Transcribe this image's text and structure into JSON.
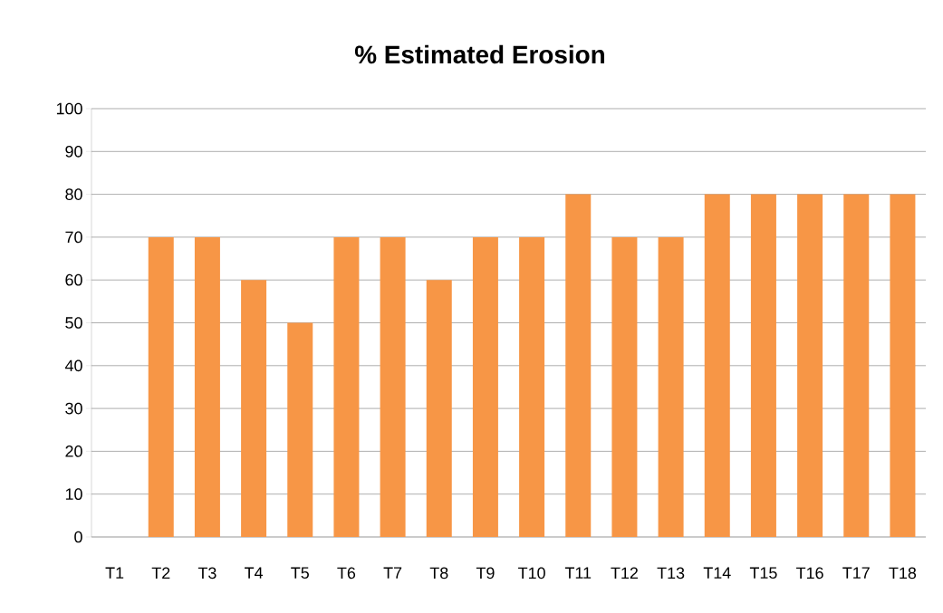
{
  "chart_data": {
    "type": "bar",
    "title": "% Estimated Erosion",
    "categories": [
      "T1",
      "T2",
      "T3",
      "T4",
      "T5",
      "T6",
      "T7",
      "T8",
      "T9",
      "T10",
      "T11",
      "T12",
      "T13",
      "T14",
      "T15",
      "T16",
      "T17",
      "T18"
    ],
    "values": [
      0,
      70,
      70,
      60,
      50,
      70,
      70,
      60,
      70,
      70,
      80,
      70,
      70,
      80,
      80,
      80,
      80,
      80
    ],
    "color": "#f79646",
    "ylim": [
      0,
      100
    ],
    "yticks": [
      0,
      10,
      20,
      30,
      40,
      50,
      60,
      70,
      80,
      90,
      100
    ],
    "grid": "y"
  }
}
